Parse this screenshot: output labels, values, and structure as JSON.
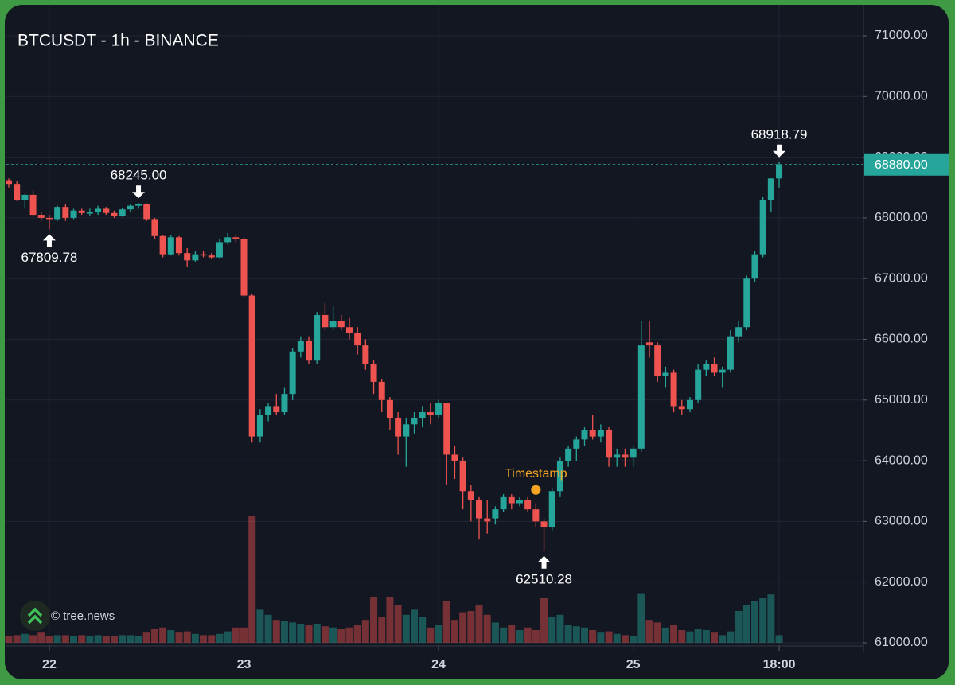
{
  "chart_data": {
    "type": "candlestick",
    "title": "BTCUSDT - 1h - BINANCE",
    "watermark": "© tree.news",
    "categories": [
      null,
      null,
      null,
      null,
      null,
      "22",
      null,
      null,
      null,
      null,
      null,
      null,
      null,
      null,
      null,
      null,
      null,
      null,
      null,
      null,
      null,
      null,
      null,
      null,
      null,
      null,
      null,
      null,
      null,
      "23",
      null,
      null,
      null,
      null,
      null,
      null,
      null,
      null,
      null,
      null,
      null,
      null,
      null,
      null,
      null,
      null,
      null,
      null,
      null,
      null,
      null,
      null,
      null,
      "24",
      null,
      null,
      null,
      null,
      null,
      null,
      null,
      null,
      null,
      null,
      null,
      null,
      null,
      null,
      null,
      null,
      null,
      null,
      null,
      null,
      null,
      null,
      null,
      "25",
      null,
      null,
      null,
      null,
      null,
      null,
      null,
      null,
      null,
      null,
      null,
      null,
      null,
      null,
      null,
      null,
      null,
      "18:00"
    ],
    "open": [
      68620,
      68560,
      68300,
      68380,
      68050,
      68000,
      67980,
      68180,
      68000,
      68120,
      68080,
      68090,
      68150,
      68080,
      68030,
      68140,
      68200,
      68230,
      67980,
      67700,
      67400,
      67680,
      67420,
      67300,
      67400,
      67380,
      67350,
      67600,
      67680,
      67650,
      66720,
      64400,
      64750,
      64900,
      64800,
      65100,
      65800,
      65980,
      65650,
      66400,
      66200,
      66300,
      66200,
      66100,
      65900,
      65600,
      65300,
      65000,
      64700,
      64400,
      64600,
      64700,
      64800,
      64750,
      64950,
      64100,
      64000,
      63500,
      63350,
      63050,
      63050,
      63200,
      63400,
      63300,
      63350,
      63200,
      63000,
      62900,
      63500,
      64000,
      64200,
      64350,
      64500,
      64400,
      64500,
      64050,
      64100,
      64050,
      64200,
      65950,
      65900,
      65400,
      65450,
      64900,
      64850,
      65000,
      65500,
      65600,
      65450,
      65500,
      66050,
      66200,
      67000,
      67400,
      68300,
      68650
    ],
    "high": [
      68650,
      68600,
      68400,
      68450,
      68100,
      68050,
      68200,
      68220,
      68150,
      68150,
      68150,
      68200,
      68180,
      68120,
      68160,
      68230,
      68245,
      68240,
      68000,
      67720,
      67720,
      67700,
      67500,
      67450,
      67450,
      67420,
      67650,
      67750,
      67720,
      67680,
      66750,
      64850,
      64950,
      65100,
      65200,
      65850,
      66050,
      66050,
      66450,
      66600,
      66550,
      66400,
      66350,
      66200,
      66000,
      65650,
      65350,
      65050,
      64800,
      64700,
      64800,
      64900,
      64950,
      65000,
      64950,
      64250,
      64050,
      63600,
      63400,
      63350,
      63250,
      63450,
      63450,
      63400,
      63400,
      63300,
      63050,
      63550,
      64050,
      64250,
      64400,
      64550,
      64750,
      64600,
      64550,
      64200,
      64200,
      64250,
      66300,
      66300,
      65950,
      65550,
      65500,
      65000,
      65050,
      65600,
      65650,
      65700,
      65550,
      66150,
      66300,
      67050,
      67450,
      68350,
      68650,
      68918.79
    ],
    "low": [
      68500,
      68280,
      68150,
      68020,
      67950,
      67809.78,
      67950,
      67950,
      67980,
      68050,
      68040,
      68050,
      68050,
      68000,
      68020,
      68100,
      68150,
      67950,
      67650,
      67350,
      67380,
      67380,
      67200,
      67280,
      67350,
      67320,
      67340,
      67560,
      67600,
      66700,
      64300,
      64300,
      64650,
      64750,
      64750,
      65000,
      65700,
      65600,
      65600,
      66150,
      66150,
      66150,
      66000,
      65750,
      65500,
      65100,
      64800,
      64500,
      64100,
      63900,
      64450,
      64550,
      64600,
      64700,
      63600,
      63700,
      63200,
      63000,
      62700,
      62800,
      62950,
      63150,
      63200,
      63250,
      63150,
      62900,
      62510.28,
      62850,
      63400,
      63900,
      64000,
      64250,
      64350,
      64300,
      63900,
      63900,
      63900,
      63900,
      64150,
      65700,
      65300,
      65200,
      64800,
      64750,
      64800,
      64950,
      65400,
      65400,
      65200,
      65450,
      65950,
      66150,
      66950,
      67350,
      68100,
      68500
    ],
    "close": [
      68560,
      68300,
      68380,
      68050,
      68000,
      67980,
      68180,
      68000,
      68120,
      68080,
      68090,
      68150,
      68080,
      68030,
      68140,
      68200,
      68230,
      67980,
      67700,
      67400,
      67680,
      67420,
      67300,
      67400,
      67380,
      67350,
      67600,
      67680,
      67650,
      66720,
      64400,
      64750,
      64900,
      64800,
      65100,
      65800,
      65980,
      65650,
      66400,
      66200,
      66300,
      66200,
      66100,
      65900,
      65600,
      65300,
      65000,
      64700,
      64400,
      64600,
      64700,
      64800,
      64750,
      64950,
      64100,
      64000,
      63500,
      63350,
      63050,
      63000,
      63200,
      63400,
      63300,
      63350,
      63200,
      63000,
      62900,
      63500,
      64000,
      64200,
      64350,
      64500,
      64400,
      64500,
      64050,
      64100,
      64050,
      64200,
      65900,
      65900,
      65400,
      65450,
      64900,
      64850,
      65000,
      65500,
      65600,
      65450,
      65500,
      66050,
      66200,
      67000,
      67400,
      68300,
      68650,
      68880
    ],
    "volume": [
      5,
      6,
      7,
      6,
      8,
      5,
      6,
      6,
      5,
      6,
      5,
      6,
      5,
      5,
      6,
      6,
      5,
      8,
      11,
      12,
      10,
      8,
      9,
      7,
      6,
      6,
      7,
      9,
      12,
      12,
      100,
      26,
      22,
      18,
      17,
      16,
      15,
      14,
      15,
      13,
      12,
      11,
      12,
      14,
      18,
      36,
      20,
      36,
      30,
      22,
      26,
      20,
      12,
      14,
      33,
      18,
      24,
      25,
      30,
      22,
      16,
      12,
      14,
      10,
      12,
      10,
      35,
      20,
      22,
      14,
      13,
      12,
      10,
      8,
      9,
      7,
      6,
      5,
      39,
      18,
      16,
      12,
      14,
      10,
      9,
      11,
      10,
      8,
      6,
      9,
      25,
      30,
      33,
      35,
      38,
      6
    ],
    "ylim": [
      61000,
      71000
    ],
    "yticks": [
      {
        "value": 61000,
        "label": "61000.00"
      },
      {
        "value": 62000,
        "label": "62000.00"
      },
      {
        "value": 63000,
        "label": "63000.00"
      },
      {
        "value": 64000,
        "label": "64000.00"
      },
      {
        "value": 65000,
        "label": "65000.00"
      },
      {
        "value": 66000,
        "label": "66000.00"
      },
      {
        "value": 67000,
        "label": "67000.00"
      },
      {
        "value": 68000,
        "label": "68000.00"
      },
      {
        "value": 69000,
        "label": "69000.00"
      },
      {
        "value": 70000,
        "label": "70000.00"
      },
      {
        "value": 71000,
        "label": "71000.00"
      }
    ],
    "last_price": {
      "value": 68880,
      "label": "68880.00"
    },
    "annotations": [
      {
        "label": "67809.78",
        "value": 67809.78,
        "at": 5
      },
      {
        "label": "68245.00",
        "value": 68245,
        "at": 16
      },
      {
        "label": "62510.28",
        "value": 62510.28,
        "at": 66
      },
      {
        "label": "68918.79",
        "value": 68918.79,
        "at": 95
      }
    ],
    "marker": {
      "label": "Timestamp",
      "value": 63520,
      "at": 65,
      "color": "#f5a623"
    },
    "up_color": "#26a69a",
    "down_color": "#ef5350",
    "grid": true
  }
}
